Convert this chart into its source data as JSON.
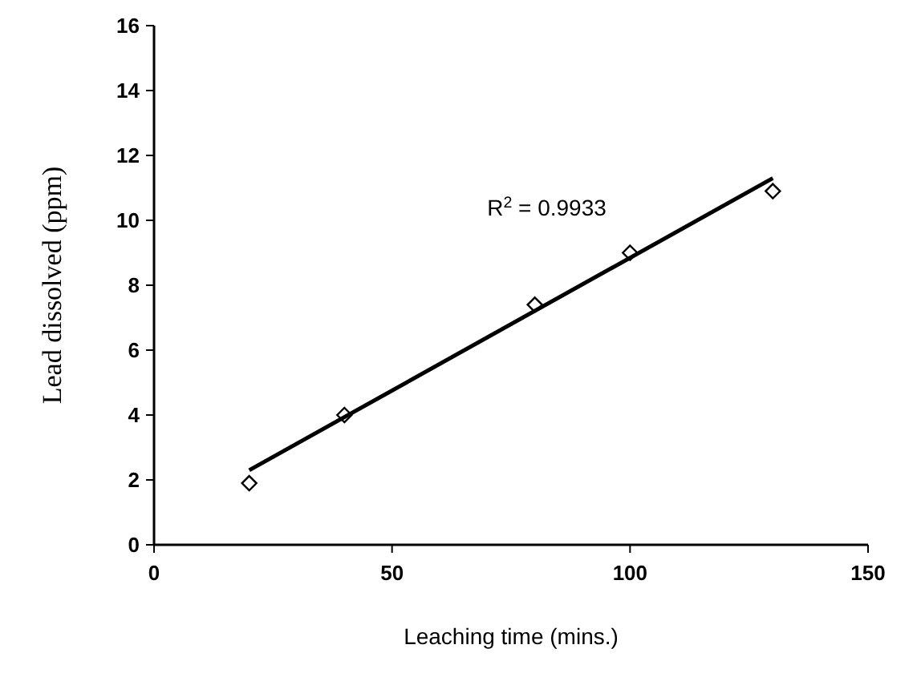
{
  "chart_data": {
    "type": "scatter",
    "xlabel": "Leaching time (mins.)",
    "ylabel": "Lead dissolved (ppm)",
    "xlim": [
      0,
      150
    ],
    "xticks": [
      0,
      50,
      100,
      150
    ],
    "ylim": [
      0,
      16
    ],
    "yticks": [
      0,
      2,
      4,
      6,
      8,
      10,
      12,
      14,
      16
    ],
    "grid": false,
    "marker": "diamond",
    "series": [
      {
        "color": "#000000",
        "x": [
          20,
          40,
          80,
          100,
          130
        ],
        "values": [
          1.9,
          4.0,
          7.4,
          9.0,
          10.9
        ]
      },
      {
        "type": "line",
        "color": "#000000",
        "marker": "none",
        "line_style": "solid",
        "x": [
          20,
          130
        ],
        "values": [
          2.3,
          11.3
        ]
      }
    ],
    "annotations": [
      "R$^{2}$ = 0.9933"
    ]
  }
}
